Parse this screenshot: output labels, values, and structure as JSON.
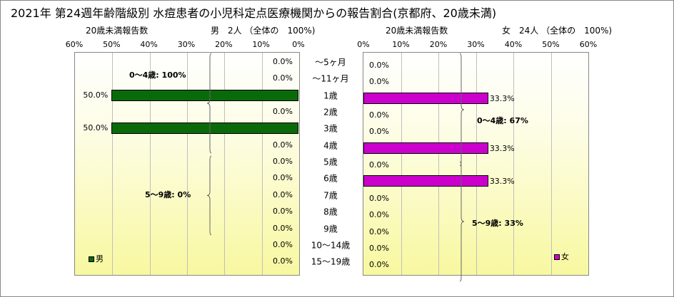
{
  "title": "2021年 第24週年齢階級別 水痘患者の小児科定点医療機関からの報告割合(京都府、20歳未満)",
  "male_header": {
    "label": "20歳未満報告数",
    "summary": "男　2人 （全体の　100%)"
  },
  "female_header": {
    "label": "20歳未満報告数",
    "summary": "女　24人 （全体の　100%)"
  },
  "male_ticks": [
    "60%",
    "50%",
    "40%",
    "30%",
    "20%",
    "10%",
    "0%"
  ],
  "female_ticks": [
    "0%",
    "10%",
    "20%",
    "30%",
    "40%",
    "50%",
    "60%"
  ],
  "chart_data": {
    "type": "bar",
    "categories": [
      "～5ヶ月",
      "～11ヶ月",
      "1歳",
      "2歳",
      "3歳",
      "4歳",
      "5歳",
      "6歳",
      "7歳",
      "8歳",
      "9歳",
      "10～14歳",
      "15～19歳"
    ],
    "xlim": [
      0,
      60
    ],
    "series": [
      {
        "name": "男",
        "color": "#0a6a0a",
        "values": [
          0,
          0,
          50,
          0,
          50,
          0,
          0,
          0,
          0,
          0,
          0,
          0,
          0
        ],
        "labels": [
          "0.0%",
          "0.0%",
          "50.0%",
          "0.0%",
          "50.0%",
          "0.0%",
          "0.0%",
          "0.0%",
          "0.0%",
          "0.0%",
          "0.0%",
          "0.0%",
          "0.0%"
        ]
      },
      {
        "name": "女",
        "color": "#cc00cc",
        "values": [
          0,
          0,
          33.3,
          0,
          0,
          33.3,
          0,
          33.3,
          0,
          0,
          0,
          0,
          0
        ],
        "labels": [
          "0.0%",
          "0.0%",
          "33.3%",
          "0.0%",
          "0.0%",
          "33.3%",
          "0.0%",
          "33.3%",
          "0.0%",
          "0.0%",
          "0.0%",
          "0.0%",
          "0.0%"
        ]
      }
    ],
    "annotations": {
      "male": [
        {
          "text": "0～4歳: 100%",
          "from": 0,
          "to": 5
        },
        {
          "text": "5～9歳: 0%",
          "from": 6,
          "to": 10
        }
      ],
      "female": [
        {
          "text": "0～4歳: 67%",
          "from": 0,
          "to": 5
        },
        {
          "text": "5～9歳: 33%",
          "from": 6,
          "to": 10
        }
      ]
    }
  }
}
